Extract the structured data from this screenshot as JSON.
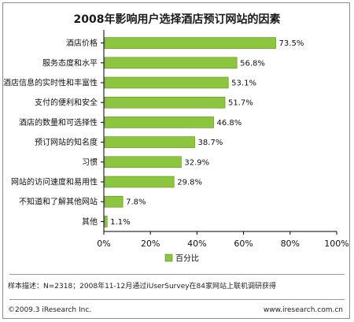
{
  "title": "2008年影响用户选择酒店预订网站的因素",
  "chart_data": {
    "type": "bar",
    "orientation": "horizontal",
    "categories": [
      "酒店价格",
      "服务态度和水平",
      "酒店信息的实时性和丰富性",
      "支付的便利和安全",
      "酒店的数量和可选择性",
      "预订网站的知名度",
      "习惯",
      "网站的访问速度和易用性",
      "不知道和了解其他网站",
      "其他"
    ],
    "series": [
      {
        "name": "百分比",
        "values": [
          73.5,
          56.8,
          53.1,
          51.7,
          46.8,
          38.7,
          32.9,
          29.8,
          7.8,
          1.1
        ]
      }
    ],
    "value_labels": [
      "73.5%",
      "56.8%",
      "53.1%",
      "51.7%",
      "46.8%",
      "38.7%",
      "32.9%",
      "29.8%",
      "7.8%",
      "1.1%"
    ],
    "xlim": [
      0,
      100
    ],
    "xticks": [
      "0%",
      "20%",
      "40%",
      "60%",
      "80%",
      "100%"
    ],
    "grid": false,
    "legend_position": "bottom-center",
    "bar_color": "#8cc63f",
    "bar_edge_color": "#5a8a1e"
  },
  "legend_label": "百分比",
  "note": "样本描述：N=2318；2008年11-12月通过iUserSurvey在84家网站上联机调研获得",
  "footer": {
    "left": "©2009.3 iResearch Inc.",
    "right": "www.iresearch.com.cn"
  }
}
